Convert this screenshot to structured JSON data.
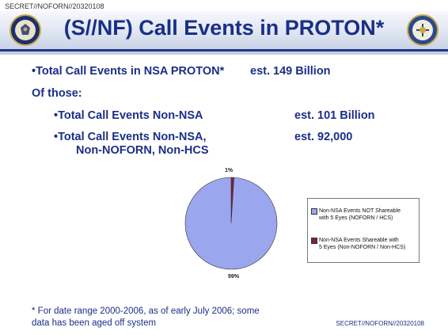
{
  "header": {
    "classification_top": "SECRET//NOFORN//20320108",
    "title": "(S//NF) Call Events in PROTON*"
  },
  "body": {
    "line1_label": "•Total Call Events in NSA PROTON*",
    "line1_value": "est. 149 Billion",
    "of_those": "Of those:",
    "line2_label": "•Total Call Events Non-NSA",
    "line2_value": "est. 101 Billion",
    "line3_label_a": "•Total Call Events Non-NSA,",
    "line3_label_b": "Non-NOFORN, Non-HCS",
    "line3_value": "est.   92,000"
  },
  "chart_data": {
    "type": "pie",
    "labels": [
      "Non-NSA Events NOT Shareable with 5 Eyes (NOFORN / HCS)",
      "Non-NSA Events Shareable with 5 Eyes (Non-NOFORN / Non-HCS)"
    ],
    "values": [
      99,
      1
    ],
    "data_labels": [
      "99%",
      "1%"
    ],
    "colors": [
      "#9aa7ee",
      "#8a1c3a"
    ],
    "legend": {
      "item1_line1": "Non-NSA Events NOT Shareable",
      "item1_line2": "with 5 Eyes (NOFORN / HCS)",
      "item2_line1": "Non-NSA Events Shareable with",
      "item2_line2": "5 Eyes (Non-NOFORN / Non-HCS)"
    }
  },
  "footer": {
    "footnote_line1": "* For date range 2000-2006, as of early July 2006; some",
    "footnote_line2": "data has been aged off system",
    "classification_bottom": "SECRET//NOFORN//20320108"
  }
}
